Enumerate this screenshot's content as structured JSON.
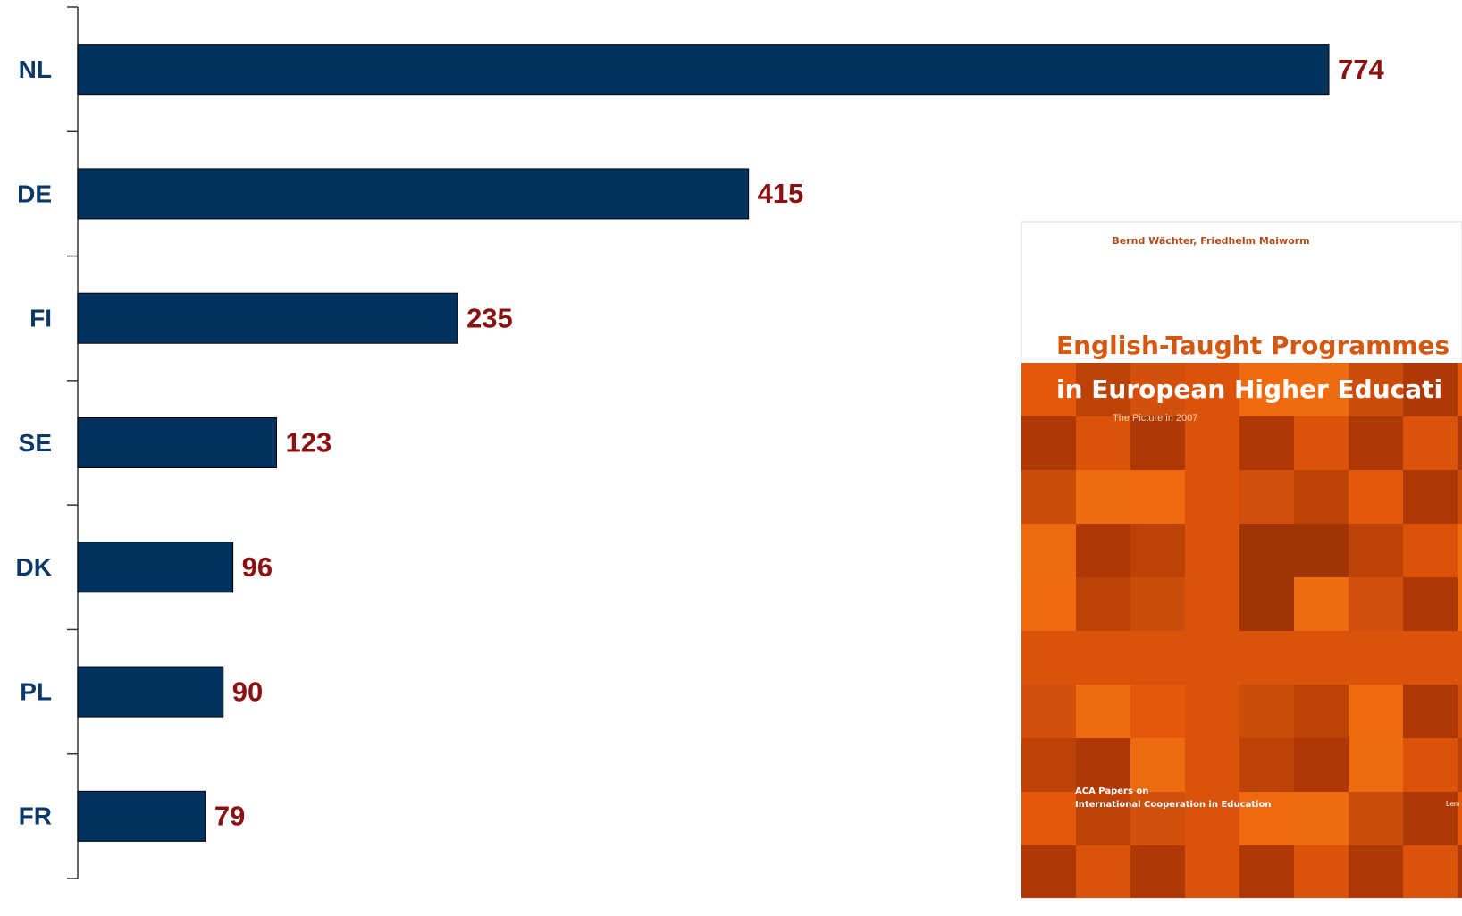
{
  "chart_data": {
    "type": "barh",
    "categories": [
      "NL",
      "DE",
      "FI",
      "SE",
      "DK",
      "PL",
      "FR"
    ],
    "values": [
      774,
      415,
      235,
      123,
      96,
      90,
      79
    ],
    "color": "#03325f",
    "label_color": "#8b1010",
    "category_color": "#0b3867"
  },
  "cover": {
    "authors": "Bernd Wächter, Friedhelm Maiworm",
    "title_line1": "English-Taught Programmes",
    "title_line2": "in European Higher Educati",
    "subtitle": "The Picture in 2007",
    "series_line1": "ACA Papers on",
    "series_line2": "International Cooperation in Education",
    "publisher": "Lem"
  }
}
